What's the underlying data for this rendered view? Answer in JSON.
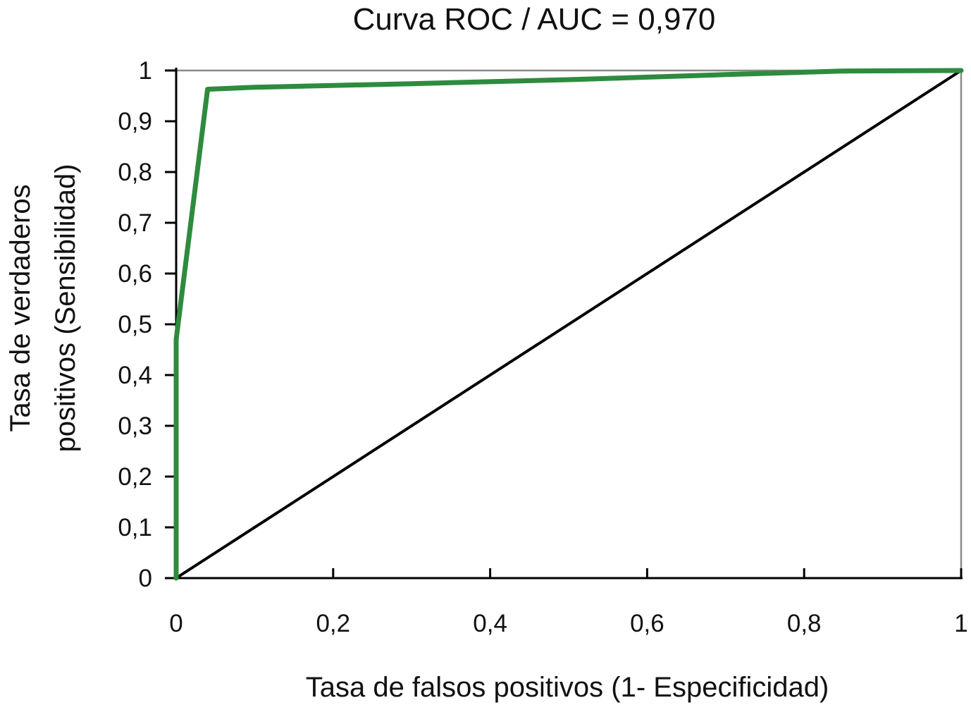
{
  "chart_data": {
    "type": "line",
    "title": "Curva ROC / AUC = 0,970",
    "xlabel": "Tasa de falsos positivos (1- Especificidad)",
    "ylabel_lines": [
      "Tasa de verdaderos",
      "positivos (Sensibilidad)"
    ],
    "xlim": [
      0,
      1
    ],
    "ylim": [
      0,
      1
    ],
    "x_ticks": [
      0,
      0.2,
      0.4,
      0.6,
      0.8,
      1
    ],
    "x_tick_labels": [
      "0",
      "0,2",
      "0,4",
      "0,6",
      "0,8",
      "1"
    ],
    "y_ticks": [
      0,
      0.1,
      0.2,
      0.3,
      0.4,
      0.5,
      0.6,
      0.7,
      0.8,
      0.9,
      1
    ],
    "y_tick_labels": [
      "0",
      "0,1",
      "0,2",
      "0,3",
      "0,4",
      "0,5",
      "0,6",
      "0,7",
      "0,8",
      "0,9",
      "1"
    ],
    "grid": false,
    "series": [
      {
        "color": "#2e8b3e",
        "x": [
          0,
          0,
          0.004,
          0.04,
          0.1,
          0.3,
          0.5,
          0.7,
          0.85,
          1
        ],
        "y": [
          0,
          0.47,
          0.52,
          0.963,
          0.967,
          0.974,
          0.982,
          0.992,
          0.999,
          1
        ]
      },
      {
        "color": "#000000",
        "x": [
          0,
          1
        ],
        "y": [
          0,
          1
        ]
      }
    ]
  }
}
